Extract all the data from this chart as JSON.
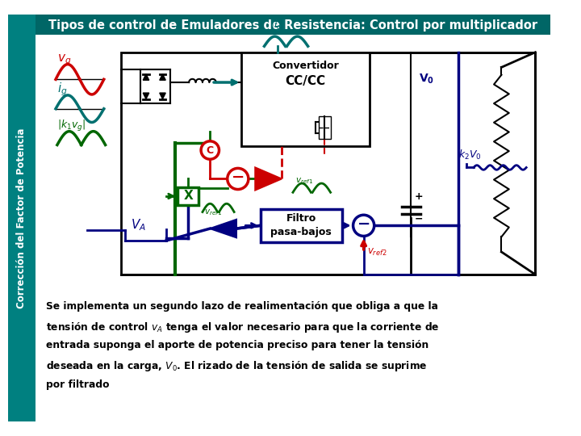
{
  "title": "Tipos de control de Emuladores de Resistencia: Control por multiplicador",
  "title_bg": "#006666",
  "title_color": "#ffffff",
  "left_bar_color": "#008080",
  "left_text": "Corrección del Factor de Potencia",
  "bg_color": "#ffffff",
  "body_text_lines": [
    "Se implementa un segundo lazo de realimentación que obliga a que la",
    "tensión de control v_A tenga el valor necesario para que la corriente de",
    "entrada suponga el aporte de potencia preciso para tener la tensión",
    "deseada en la carga, V_0. El rizado de la tensión de salida se suprime",
    "por filtrado"
  ],
  "colors": {
    "red": "#cc0000",
    "green": "#006600",
    "teal": "#007070",
    "dark_blue": "#000080",
    "black": "#000000",
    "white": "#ffffff",
    "light_gray": "#f0f0f0"
  }
}
